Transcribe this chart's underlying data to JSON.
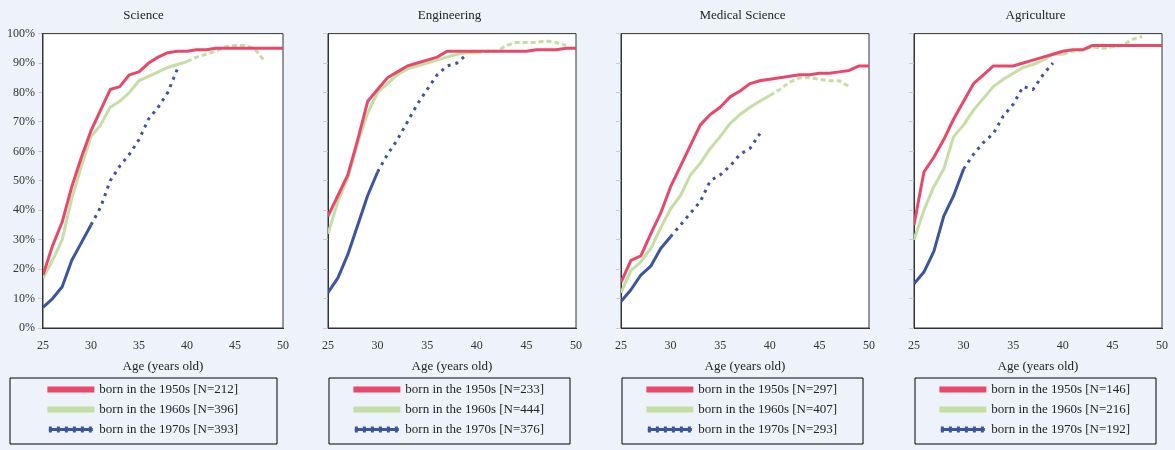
{
  "chart_data": [
    {
      "type": "line",
      "title": "Science",
      "xlabel": "Age (years old)",
      "xlim": [
        25,
        50
      ],
      "xticks": [
        25,
        30,
        35,
        40,
        45,
        50
      ],
      "ylim": [
        0,
        100
      ],
      "yticks": [
        {
          "value": 0,
          "label": "0%"
        },
        {
          "value": 10,
          "label": "10%"
        },
        {
          "value": 20,
          "label": "20%"
        },
        {
          "value": 30,
          "label": "30%"
        },
        {
          "value": 40,
          "label": "40%"
        },
        {
          "value": 50,
          "label": "50%"
        },
        {
          "value": 60,
          "label": "60%"
        },
        {
          "value": 70,
          "label": "70%"
        },
        {
          "value": 80,
          "label": "80%"
        },
        {
          "value": 90,
          "label": "90%"
        },
        {
          "value": 100,
          "label": "100%"
        }
      ],
      "legend": "bottom",
      "marker": "none",
      "series": [
        {
          "name": "born in the 1950s [N=212]",
          "color": "#e8496a",
          "line_style": "solid",
          "x": [
            25,
            26,
            27,
            28,
            29,
            30,
            31,
            32,
            33,
            34,
            35,
            36,
            37,
            38,
            39,
            40,
            41,
            42,
            43,
            44,
            45,
            46,
            47,
            48,
            49,
            50
          ],
          "values": [
            18,
            28,
            36,
            48,
            58,
            67,
            74,
            81,
            82,
            86,
            87,
            90,
            92,
            93.5,
            94,
            94,
            94.5,
            94.5,
            95,
            95,
            95,
            95,
            95,
            95,
            95,
            95
          ]
        },
        {
          "name": "born in the 1960s [N=396]",
          "color": "#c5dea4",
          "line_style": "solid",
          "x": [
            25,
            26,
            27,
            28,
            29,
            30,
            31,
            32,
            33,
            34,
            35,
            36,
            37,
            38,
            39,
            40
          ],
          "values": [
            17,
            23,
            30,
            44,
            55,
            65,
            69,
            75,
            77,
            80,
            84,
            85.5,
            87,
            88.5,
            89.5,
            90.5
          ]
        },
        {
          "color": "#c5dea4",
          "line_style": "dashed",
          "x": [
            40,
            41,
            42,
            43,
            44,
            45,
            46,
            47,
            48
          ],
          "values": [
            90.5,
            92,
            93,
            94,
            95.5,
            96,
            96,
            95,
            91
          ]
        },
        {
          "color": "#3d559f",
          "line_style": "solid",
          "x": [
            25,
            26,
            27,
            28,
            29,
            30
          ],
          "values": [
            7,
            10,
            14,
            23,
            29,
            35
          ]
        },
        {
          "name": "born in the 1970s [N=393]",
          "color": "#3d559f",
          "line_style": "dotted",
          "x": [
            30,
            31,
            32,
            33,
            34,
            35,
            36,
            37,
            38,
            39
          ],
          "values": [
            35,
            41,
            50,
            55,
            59,
            64,
            71,
            75,
            80,
            88
          ]
        }
      ]
    },
    {
      "type": "line",
      "title": "Engineering",
      "xlabel": "Age (years old)",
      "xlim": [
        25,
        50
      ],
      "xticks": [
        25,
        30,
        35,
        40,
        45,
        50
      ],
      "ylim": [
        0,
        100
      ],
      "yticks": [
        0,
        10,
        20,
        30,
        40,
        50,
        60,
        70,
        80,
        90,
        100
      ],
      "tick_labels": "x",
      "legend": "bottom",
      "marker": "none",
      "series": [
        {
          "name": "born in the 1950s [N=233]",
          "color": "#e8496a",
          "line_style": "solid",
          "x": [
            25,
            26,
            27,
            28,
            29,
            30,
            31,
            32,
            33,
            34,
            35,
            36,
            37,
            38,
            39,
            40,
            41,
            42,
            43,
            44,
            45,
            46,
            47,
            48,
            49,
            50
          ],
          "values": [
            38,
            45,
            52,
            64,
            77,
            81,
            85,
            87,
            89,
            90,
            91,
            92,
            94,
            94,
            94,
            94,
            94,
            94,
            94,
            94,
            94,
            94.5,
            94.5,
            94.5,
            95,
            95
          ]
        },
        {
          "name": "born in the 1960s [N=444]",
          "color": "#c5dea4",
          "line_style": "solid",
          "x": [
            25,
            26,
            27,
            28,
            29,
            30,
            31,
            32,
            33,
            34,
            35,
            36,
            37,
            38,
            39,
            40
          ],
          "values": [
            32,
            43,
            51,
            63,
            73,
            80,
            83,
            86,
            88,
            89,
            90,
            91,
            92,
            93,
            93.5,
            93.5
          ]
        },
        {
          "color": "#c5dea4",
          "line_style": "dashed",
          "x": [
            40,
            41,
            42,
            43,
            44,
            45,
            46,
            47,
            48,
            49
          ],
          "values": [
            93.5,
            94,
            94,
            96,
            97,
            97,
            97,
            97.5,
            97,
            96
          ]
        },
        {
          "color": "#3d559f",
          "line_style": "solid",
          "x": [
            25,
            26,
            27,
            28,
            29,
            30
          ],
          "values": [
            12,
            17,
            25,
            35,
            45,
            53
          ]
        },
        {
          "name": "born in the 1970s [N=376]",
          "color": "#3d559f",
          "line_style": "dotted",
          "x": [
            30,
            31,
            32,
            33,
            34,
            35,
            36,
            37,
            38,
            39
          ],
          "values": [
            53,
            59,
            64,
            70,
            76,
            81,
            86,
            89,
            90,
            93
          ]
        }
      ]
    },
    {
      "type": "line",
      "title": "Medical Science",
      "xlabel": "Age (years old)",
      "xlim": [
        25,
        50
      ],
      "xticks": [
        25,
        30,
        35,
        40,
        45,
        50
      ],
      "ylim": [
        0,
        100
      ],
      "yticks": [
        0,
        10,
        20,
        30,
        40,
        50,
        60,
        70,
        80,
        90,
        100
      ],
      "tick_labels": "x",
      "legend": "bottom",
      "marker": "none",
      "series": [
        {
          "name": "born in the 1950s [N=297]",
          "color": "#e8496a",
          "line_style": "solid",
          "x": [
            25,
            26,
            27,
            28,
            29,
            30,
            31,
            32,
            33,
            34,
            35,
            36,
            37,
            38,
            39,
            40,
            41,
            42,
            43,
            44,
            45,
            46,
            47,
            48,
            49,
            50
          ],
          "values": [
            15.5,
            23,
            24.5,
            32,
            39,
            48,
            55,
            62,
            69,
            72.5,
            75,
            78.5,
            80.5,
            83,
            84,
            84.5,
            85,
            85.5,
            86,
            86,
            86.5,
            86.5,
            87,
            87.5,
            89,
            89
          ]
        },
        {
          "name": "born in the 1960s [N=407]",
          "color": "#c5dea4",
          "line_style": "solid",
          "x": [
            25,
            26,
            27,
            28,
            29,
            30,
            31,
            32,
            33,
            34,
            35,
            36,
            37,
            38,
            39,
            40
          ],
          "values": [
            12,
            19.5,
            22.5,
            27,
            34,
            40.5,
            45,
            52,
            56,
            61,
            65,
            69.5,
            72.5,
            75,
            77,
            79
          ]
        },
        {
          "color": "#c5dea4",
          "line_style": "dashed",
          "x": [
            40,
            41,
            42,
            43,
            44,
            45,
            46,
            47,
            48
          ],
          "values": [
            79,
            81,
            83.5,
            85,
            85,
            84.5,
            84,
            84,
            82
          ]
        },
        {
          "color": "#3d559f",
          "line_style": "solid",
          "x": [
            25,
            26,
            27,
            28,
            29,
            30
          ],
          "values": [
            9,
            13,
            18,
            21,
            27,
            31
          ]
        },
        {
          "name": "born in the 1970s [N=293]",
          "color": "#3d559f",
          "line_style": "dotted",
          "x": [
            30,
            31,
            32,
            33,
            34,
            35,
            36,
            37,
            38,
            39
          ],
          "values": [
            31,
            35,
            39,
            43,
            50,
            52,
            55,
            59,
            61,
            66
          ]
        }
      ]
    },
    {
      "type": "line",
      "title": "Agriculture",
      "xlabel": "Age (years old)",
      "xlim": [
        25,
        50
      ],
      "xticks": [
        25,
        30,
        35,
        40,
        45,
        50
      ],
      "ylim": [
        0,
        100
      ],
      "yticks": [
        0,
        10,
        20,
        30,
        40,
        50,
        60,
        70,
        80,
        90,
        100
      ],
      "tick_labels": "x",
      "legend": "bottom",
      "marker": "none",
      "series": [
        {
          "name": "born in the 1950s [N=146]",
          "color": "#e8496a",
          "line_style": "solid",
          "x": [
            25,
            26,
            27,
            28,
            29,
            30,
            31,
            32,
            33,
            34,
            35,
            36,
            37,
            38,
            39,
            40,
            41,
            42,
            43,
            44,
            45,
            46,
            47,
            48,
            49,
            50
          ],
          "values": [
            35,
            53,
            58,
            64,
            71,
            77,
            83,
            86,
            89,
            89,
            89,
            90,
            91,
            92,
            93,
            94,
            94.5,
            94.5,
            96,
            96,
            96,
            96,
            96,
            96,
            96,
            96
          ]
        },
        {
          "name": "born in the 1960s [N=216]",
          "color": "#c5dea4",
          "line_style": "solid",
          "x": [
            25,
            26,
            27,
            28,
            29,
            30,
            31,
            32,
            33,
            34,
            35,
            36,
            37,
            38,
            39,
            40
          ],
          "values": [
            30,
            40,
            48,
            54,
            65,
            69,
            74,
            78,
            82,
            84.5,
            86.5,
            88.5,
            89.5,
            91,
            93,
            93
          ]
        },
        {
          "color": "#c5dea4",
          "line_style": "dashed",
          "x": [
            40,
            41,
            42,
            43,
            44,
            45,
            46,
            47,
            48
          ],
          "values": [
            93,
            94,
            94.5,
            95.5,
            95,
            95.5,
            96,
            98,
            99
          ]
        },
        {
          "color": "#3d559f",
          "line_style": "solid",
          "x": [
            25,
            26,
            27,
            28,
            29,
            30
          ],
          "values": [
            15,
            19,
            26,
            38,
            45,
            54
          ]
        },
        {
          "name": "born in the 1970s [N=192]",
          "color": "#3d559f",
          "line_style": "dotted",
          "x": [
            30,
            31,
            32,
            33,
            34,
            35,
            36,
            37,
            38,
            39
          ],
          "values": [
            54,
            59,
            63,
            66,
            72,
            76,
            82,
            81,
            86,
            90
          ]
        }
      ]
    }
  ]
}
